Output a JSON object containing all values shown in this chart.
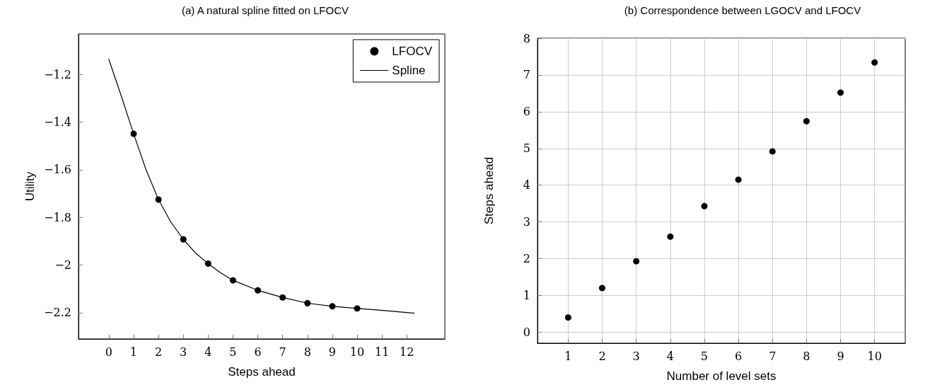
{
  "chart_data": [
    {
      "type": "scatter",
      "title": "(a) A natural spline fitted on LFOCV",
      "xlabel": "Steps ahead",
      "ylabel": "Utility",
      "xlim": [
        -1.22,
        13.53
      ],
      "xticks": [
        0,
        1,
        2,
        3,
        4,
        5,
        6,
        7,
        8,
        9,
        10,
        11,
        12
      ],
      "ylim": [
        -2.31,
        -1.03
      ],
      "yticks": [
        -2.2,
        -2,
        -1.8,
        -1.6,
        -1.4,
        -1.2
      ],
      "grid": false,
      "legend": "top right",
      "series": [
        {
          "name": "LFOCV",
          "marker": "circle",
          "color": "#000000",
          "x": [
            1,
            2,
            3,
            4,
            5,
            6,
            7,
            8,
            9,
            10
          ],
          "values": [
            -1.449,
            -1.725,
            -1.892,
            -1.994,
            -2.064,
            -2.106,
            -2.136,
            -2.16,
            -2.173,
            -2.182
          ]
        },
        {
          "name": "Spline",
          "type": "line",
          "marker": "none",
          "line_style": "solid",
          "color": "#000000",
          "x": [
            0,
            0.5,
            1,
            1.5,
            2,
            2.5,
            3,
            3.5,
            4,
            4.5,
            5,
            6,
            7,
            8,
            9,
            10,
            11,
            12.3
          ],
          "values": [
            -1.136,
            -1.29,
            -1.449,
            -1.6,
            -1.725,
            -1.82,
            -1.892,
            -1.95,
            -1.994,
            -2.032,
            -2.064,
            -2.106,
            -2.136,
            -2.16,
            -2.173,
            -2.182,
            -2.19,
            -2.202
          ]
        }
      ]
    },
    {
      "type": "scatter",
      "title": "(b) Correspondence between LGOCV and LFOCV",
      "xlabel": "Number of level sets",
      "ylabel": "Steps ahead",
      "xlim": [
        0.1,
        10.9
      ],
      "xticks": [
        1,
        2,
        3,
        4,
        5,
        6,
        7,
        8,
        9,
        10
      ],
      "ylim": [
        -0.3,
        8
      ],
      "yticks": [
        0,
        1,
        2,
        3,
        4,
        5,
        6,
        7,
        8
      ],
      "grid": true,
      "legend": false,
      "marker": "circle",
      "series": [
        {
          "color": "#000000",
          "x": [
            1,
            2,
            3,
            4,
            5,
            6,
            7,
            8,
            9,
            10
          ],
          "values": [
            0.4,
            1.2,
            1.93,
            2.6,
            3.43,
            4.15,
            4.92,
            5.74,
            6.52,
            7.34
          ]
        }
      ]
    }
  ]
}
